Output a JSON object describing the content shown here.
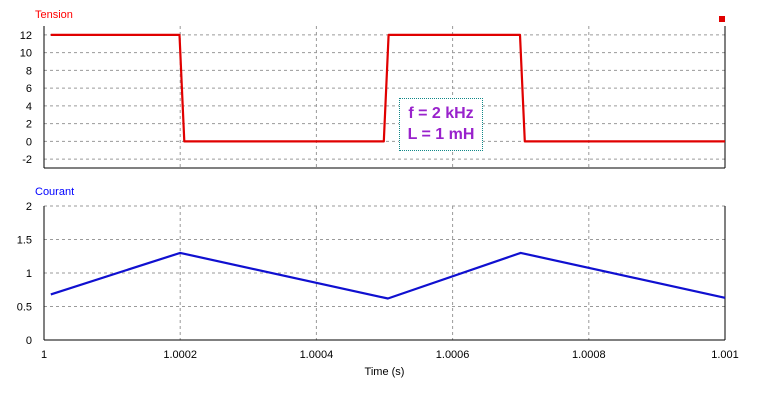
{
  "chart_data": [
    {
      "type": "line",
      "title": "Tension",
      "title_color": "#ff0000",
      "xlim": [
        1.0,
        1.001
      ],
      "ylim": [
        -3,
        13
      ],
      "y_ticks": [
        -2,
        0,
        2,
        4,
        6,
        8,
        10,
        12
      ],
      "y_tick_labels": [
        "-2",
        "0",
        "2",
        "4",
        "6",
        "8",
        "10",
        "12"
      ],
      "grid": true,
      "legend": "top-right",
      "series": [
        {
          "color": "#e00000",
          "x": [
            1.00001,
            1.000199,
            1.000206,
            1.000499,
            1.000506,
            1.000699,
            1.000706,
            1.001
          ],
          "y": [
            12,
            12,
            0,
            0,
            12,
            12,
            0,
            0
          ]
        }
      ],
      "annotation": {
        "lines": [
          "f = 2 kHz",
          "L = 1 mH"
        ],
        "color": "#9922cc"
      }
    },
    {
      "type": "line",
      "title": "Courant",
      "title_color": "#0000ff",
      "xlabel": "Time (s)",
      "xlim": [
        1.0,
        1.001
      ],
      "ylim": [
        0,
        2
      ],
      "x_ticks": [
        1.0,
        1.0002,
        1.0004,
        1.0006,
        1.0008,
        1.001
      ],
      "x_tick_labels": [
        "1",
        "1.0002",
        "1.0004",
        "1.0006",
        "1.0008",
        "1.001"
      ],
      "y_ticks": [
        0,
        0.5,
        1,
        1.5,
        2
      ],
      "y_tick_labels": [
        "0",
        "0.5",
        "1",
        "1.5",
        "2"
      ],
      "grid": true,
      "series": [
        {
          "color": "#1010d0",
          "x": [
            1.00001,
            1.0002,
            1.000505,
            1.0007,
            1.001
          ],
          "y": [
            0.68,
            1.3,
            0.62,
            1.3,
            0.63
          ]
        }
      ]
    }
  ]
}
